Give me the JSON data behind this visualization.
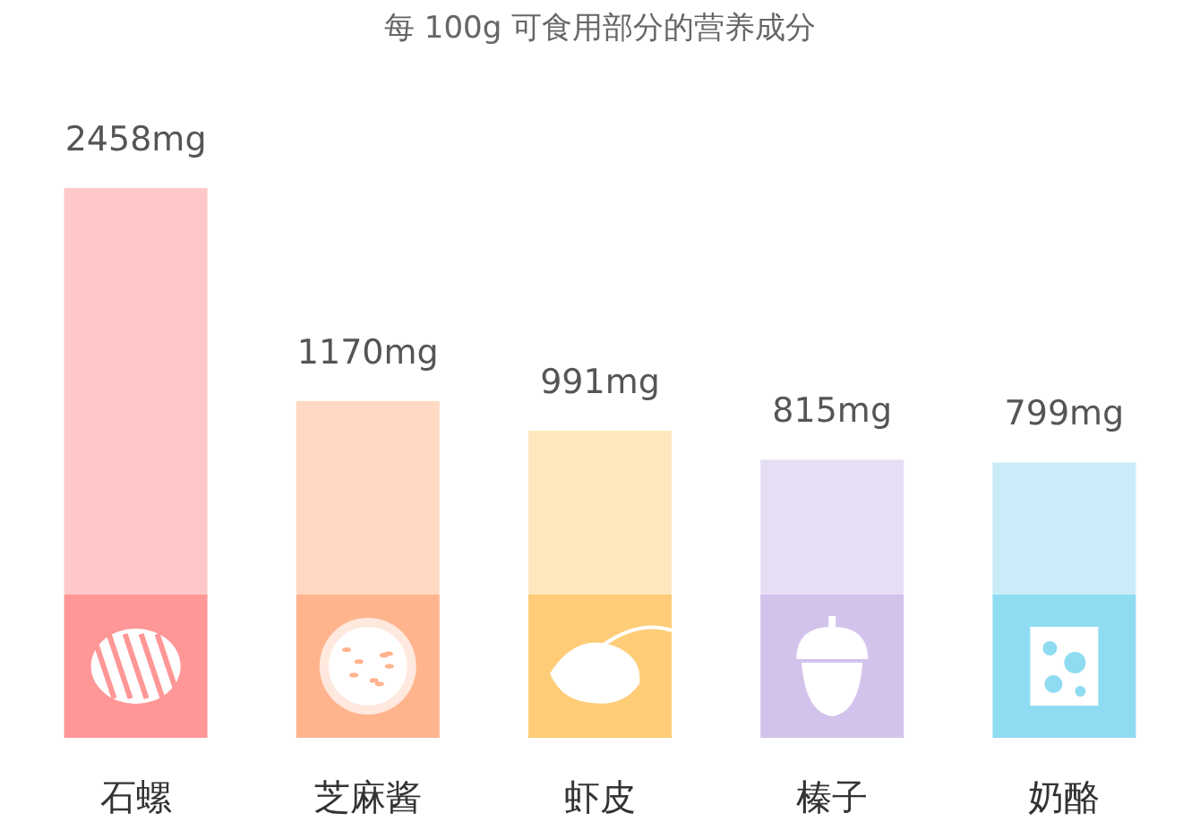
{
  "chart_data": {
    "type": "bar",
    "title": "每 100g 可食用部分的营养成分",
    "categories": [
      "石螺",
      "芝麻酱",
      "虾皮",
      "榛子",
      "奶酪"
    ],
    "values": [
      2458,
      1170,
      991,
      815,
      799
    ],
    "value_labels": [
      "2458mg",
      "1170mg",
      "991mg",
      "815mg",
      "799mg"
    ],
    "colors": [
      "#ffc8c8",
      "#ffd9c2",
      "#ffe7bd",
      "#e6def4",
      "#c9ecf8"
    ],
    "relative": false
  }
}
